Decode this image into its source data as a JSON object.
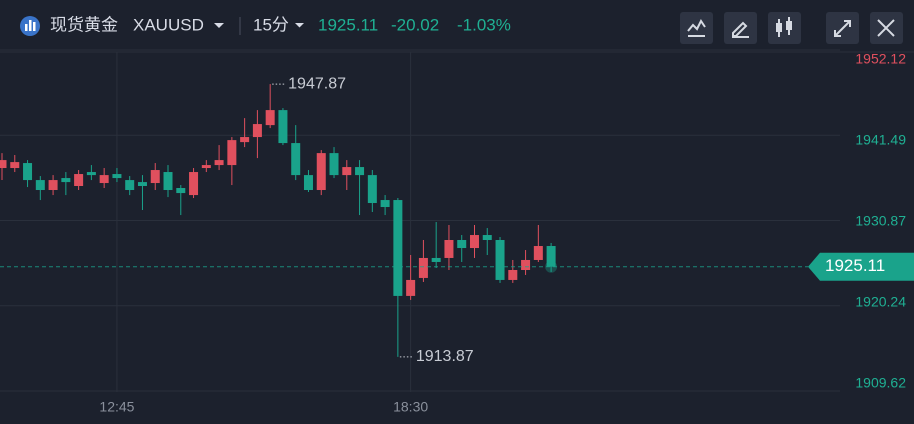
{
  "header": {
    "name": "现货黄金",
    "symbol": "XAUUSD",
    "interval": "15分",
    "change": "-20.02",
    "change_percent": "-1.03%"
  },
  "chart_data": {
    "type": "candlestick",
    "categories": [
      null,
      null,
      null,
      null,
      null,
      null,
      null,
      null,
      null,
      "12:45",
      null,
      null,
      null,
      null,
      null,
      null,
      null,
      null,
      null,
      null,
      null,
      null,
      null,
      null,
      null,
      null,
      null,
      null,
      null,
      null,
      null,
      null,
      "18:30",
      null,
      null,
      null,
      null,
      null,
      null,
      null,
      null,
      null,
      null,
      null
    ],
    "open": [
      1937.41,
      1937.41,
      1938.03,
      1935.91,
      1934.67,
      1936.16,
      1935.17,
      1936.91,
      1935.54,
      1936.66,
      1935.91,
      1935.66,
      1935.54,
      1936.91,
      1934.92,
      1934.04,
      1937.41,
      1937.78,
      1937.78,
      1940.64,
      1941.27,
      1942.76,
      1944.63,
      1940.52,
      1936.53,
      1934.67,
      1939.27,
      1936.53,
      1937.53,
      1936.53,
      1933.42,
      1933.42,
      1921.47,
      1923.71,
      1926.2,
      1926.2,
      1928.44,
      1927.44,
      1929.06,
      1928.44,
      1923.46,
      1924.7,
      1925.95,
      1927.69
    ],
    "high": [
      1939.27,
      1939.03,
      1938.4,
      1936.41,
      1936.53,
      1936.91,
      1937.16,
      1937.78,
      1937.41,
      1937.41,
      1936.41,
      1936.53,
      1938.03,
      1937.78,
      1935.29,
      1937.41,
      1938.4,
      1940.27,
      1941.27,
      1943.63,
      1944.63,
      1947.87,
      1944.88,
      1942.76,
      1937.16,
      1939.65,
      1940.02,
      1938.4,
      1938.4,
      1937.16,
      1934.04,
      1933.67,
      1926.57,
      1928.44,
      1930.68,
      1930.31,
      1929.06,
      1930.31,
      1929.93,
      1928.81,
      1925.95,
      1927.19,
      1930.31,
      1928.07
    ],
    "low": [
      1935.91,
      1936.91,
      1935.04,
      1933.42,
      1934.04,
      1934.04,
      1934.67,
      1935.91,
      1934.92,
      1935.66,
      1934.04,
      1932.18,
      1934.67,
      1933.79,
      1931.55,
      1933.67,
      1936.91,
      1937.16,
      1935.29,
      1940.02,
      1938.65,
      1942.39,
      1940.27,
      1935.91,
      1934.42,
      1934.04,
      1936.16,
      1934.67,
      1931.55,
      1931.93,
      1931.55,
      1913.87,
      1920.97,
      1923.21,
      1924.95,
      1924.7,
      1925.7,
      1926.2,
      1926.57,
      1923.09,
      1923.09,
      1924.08,
      1925.7,
      1924.46
    ],
    "close": [
      1938.4,
      1938.15,
      1935.91,
      1934.67,
      1935.91,
      1935.66,
      1936.66,
      1936.53,
      1936.53,
      1936.16,
      1934.67,
      1935.17,
      1937.16,
      1934.67,
      1934.29,
      1936.91,
      1937.78,
      1938.4,
      1940.89,
      1941.27,
      1942.89,
      1944.63,
      1940.52,
      1936.53,
      1934.67,
      1939.27,
      1936.53,
      1937.53,
      1936.53,
      1933.05,
      1932.55,
      1921.47,
      1923.46,
      1926.2,
      1925.7,
      1928.44,
      1927.44,
      1929.06,
      1928.44,
      1923.46,
      1924.7,
      1925.95,
      1927.69,
      1925.11
    ],
    "up_color": "#e0505e",
    "down_color": "#1aa38b",
    "ylim": [
      1909.62,
      1952.12
    ],
    "yticks": [
      1952.12,
      1941.49,
      1930.87,
      1920.24,
      1909.62
    ],
    "ytick_colors": [
      "#e0505e",
      "#1fb093",
      "#1fb093",
      "#1fb093",
      "#1fb093"
    ],
    "grid": true
  }
}
